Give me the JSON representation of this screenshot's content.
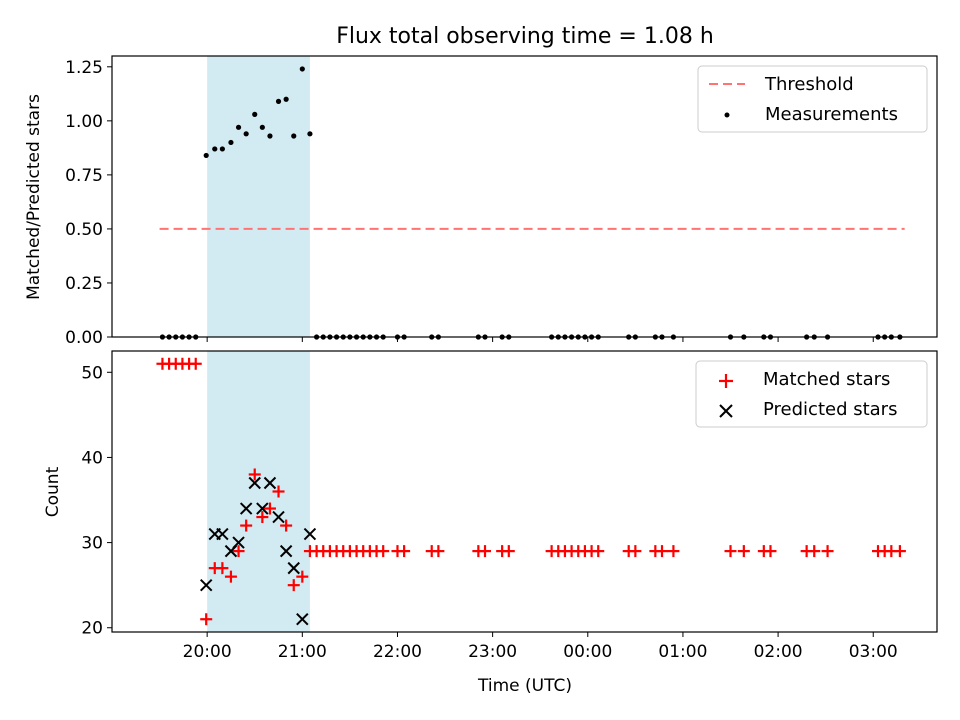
{
  "chart_data": [
    {
      "type": "scatter",
      "title": "Flux total observing time = 1.08 h",
      "xlabel": "",
      "ylabel": "Matched/Predicted stars",
      "ylim": [
        0,
        1.3
      ],
      "yticks": [
        0.0,
        0.25,
        0.5,
        0.75,
        1.0,
        1.25
      ],
      "ytick_labels": [
        "0.00",
        "0.25",
        "0.50",
        "0.75",
        "1.00",
        "1.25"
      ],
      "xlim_hours": [
        19.0,
        27.67
      ],
      "xticks_hours": [
        20,
        21,
        22,
        23,
        24,
        25,
        26,
        27
      ],
      "legend_position": "top-right",
      "observing_window_hours": [
        20.0,
        21.08
      ],
      "observing_window_color": "#add8e6",
      "threshold": {
        "name": "Threshold",
        "y": 0.5,
        "x_from": 19.5,
        "x_to": 27.33,
        "color": "#ff7373",
        "style": "dashed"
      },
      "series": [
        {
          "name": "Measurements",
          "marker": "dot",
          "color": "#000000",
          "points": [
            [
              19.53,
              0
            ],
            [
              19.6,
              0
            ],
            [
              19.67,
              0
            ],
            [
              19.74,
              0
            ],
            [
              19.81,
              0
            ],
            [
              19.88,
              0
            ],
            [
              19.99,
              0.84
            ],
            [
              20.08,
              0.87
            ],
            [
              20.16,
              0.87
            ],
            [
              20.25,
              0.9
            ],
            [
              20.33,
              0.97
            ],
            [
              20.41,
              0.94
            ],
            [
              20.5,
              1.03
            ],
            [
              20.58,
              0.97
            ],
            [
              20.66,
              0.93
            ],
            [
              20.75,
              1.09
            ],
            [
              20.83,
              1.1
            ],
            [
              20.91,
              0.93
            ],
            [
              21.0,
              1.24
            ],
            [
              21.08,
              0.94
            ],
            [
              21.15,
              0
            ],
            [
              21.22,
              0
            ],
            [
              21.29,
              0
            ],
            [
              21.36,
              0
            ],
            [
              21.43,
              0
            ],
            [
              21.5,
              0
            ],
            [
              21.57,
              0
            ],
            [
              21.64,
              0
            ],
            [
              21.71,
              0
            ],
            [
              21.78,
              0
            ],
            [
              21.85,
              0
            ],
            [
              22.0,
              0
            ],
            [
              22.07,
              0
            ],
            [
              22.36,
              0
            ],
            [
              22.43,
              0
            ],
            [
              22.85,
              0
            ],
            [
              22.92,
              0
            ],
            [
              23.1,
              0
            ],
            [
              23.17,
              0
            ],
            [
              23.62,
              0
            ],
            [
              23.69,
              0
            ],
            [
              23.76,
              0
            ],
            [
              23.83,
              0
            ],
            [
              23.9,
              0
            ],
            [
              23.97,
              0
            ],
            [
              24.04,
              0
            ],
            [
              24.11,
              0
            ],
            [
              24.43,
              0
            ],
            [
              24.5,
              0
            ],
            [
              24.71,
              0
            ],
            [
              24.78,
              0
            ],
            [
              24.9,
              0
            ],
            [
              25.5,
              0
            ],
            [
              25.64,
              0
            ],
            [
              25.85,
              0
            ],
            [
              25.92,
              0
            ],
            [
              26.3,
              0
            ],
            [
              26.38,
              0
            ],
            [
              26.52,
              0
            ],
            [
              27.05,
              0
            ],
            [
              27.12,
              0
            ],
            [
              27.19,
              0
            ],
            [
              27.28,
              0
            ]
          ]
        }
      ]
    },
    {
      "type": "scatter",
      "title": "",
      "xlabel": "Time (UTC)",
      "ylabel": "Count",
      "ylim": [
        19.5,
        52.5
      ],
      "yticks": [
        20,
        30,
        40,
        50
      ],
      "ytick_labels": [
        "20",
        "30",
        "40",
        "50"
      ],
      "xlim_hours": [
        19.0,
        27.67
      ],
      "xticks_hours": [
        20,
        21,
        22,
        23,
        24,
        25,
        26,
        27
      ],
      "xtick_labels": [
        "20:00",
        "21:00",
        "22:00",
        "23:00",
        "00:00",
        "01:00",
        "02:00",
        "03:00"
      ],
      "legend_position": "top-right",
      "observing_window_hours": [
        20.0,
        21.08
      ],
      "observing_window_color": "#add8e6",
      "series": [
        {
          "name": "Matched stars",
          "marker": "plus",
          "color": "#ff0000",
          "points": [
            [
              19.53,
              51
            ],
            [
              19.6,
              51
            ],
            [
              19.67,
              51
            ],
            [
              19.74,
              51
            ],
            [
              19.81,
              51
            ],
            [
              19.88,
              51
            ],
            [
              19.99,
              21
            ],
            [
              20.08,
              27
            ],
            [
              20.16,
              27
            ],
            [
              20.25,
              26
            ],
            [
              20.33,
              29
            ],
            [
              20.41,
              32
            ],
            [
              20.5,
              38
            ],
            [
              20.58,
              33
            ],
            [
              20.66,
              34
            ],
            [
              20.75,
              36
            ],
            [
              20.83,
              32
            ],
            [
              20.91,
              25
            ],
            [
              21.0,
              26
            ],
            [
              21.08,
              29
            ],
            [
              21.15,
              29
            ],
            [
              21.22,
              29
            ],
            [
              21.29,
              29
            ],
            [
              21.36,
              29
            ],
            [
              21.43,
              29
            ],
            [
              21.5,
              29
            ],
            [
              21.57,
              29
            ],
            [
              21.64,
              29
            ],
            [
              21.71,
              29
            ],
            [
              21.78,
              29
            ],
            [
              21.85,
              29
            ],
            [
              22.0,
              29
            ],
            [
              22.07,
              29
            ],
            [
              22.36,
              29
            ],
            [
              22.43,
              29
            ],
            [
              22.85,
              29
            ],
            [
              22.92,
              29
            ],
            [
              23.1,
              29
            ],
            [
              23.17,
              29
            ],
            [
              23.62,
              29
            ],
            [
              23.69,
              29
            ],
            [
              23.76,
              29
            ],
            [
              23.83,
              29
            ],
            [
              23.9,
              29
            ],
            [
              23.97,
              29
            ],
            [
              24.04,
              29
            ],
            [
              24.11,
              29
            ],
            [
              24.43,
              29
            ],
            [
              24.5,
              29
            ],
            [
              24.71,
              29
            ],
            [
              24.78,
              29
            ],
            [
              24.9,
              29
            ],
            [
              25.5,
              29
            ],
            [
              25.64,
              29
            ],
            [
              25.85,
              29
            ],
            [
              25.92,
              29
            ],
            [
              26.3,
              29
            ],
            [
              26.38,
              29
            ],
            [
              26.52,
              29
            ],
            [
              27.05,
              29
            ],
            [
              27.12,
              29
            ],
            [
              27.19,
              29
            ],
            [
              27.28,
              29
            ]
          ]
        },
        {
          "name": "Predicted stars",
          "marker": "x",
          "color": "#000000",
          "points": [
            [
              19.99,
              25
            ],
            [
              20.08,
              31
            ],
            [
              20.16,
              31
            ],
            [
              20.25,
              29
            ],
            [
              20.33,
              30
            ],
            [
              20.41,
              34
            ],
            [
              20.5,
              37
            ],
            [
              20.58,
              34
            ],
            [
              20.66,
              37
            ],
            [
              20.75,
              33
            ],
            [
              20.83,
              29
            ],
            [
              20.91,
              27
            ],
            [
              21.0,
              21
            ],
            [
              21.08,
              31
            ]
          ]
        }
      ]
    }
  ]
}
